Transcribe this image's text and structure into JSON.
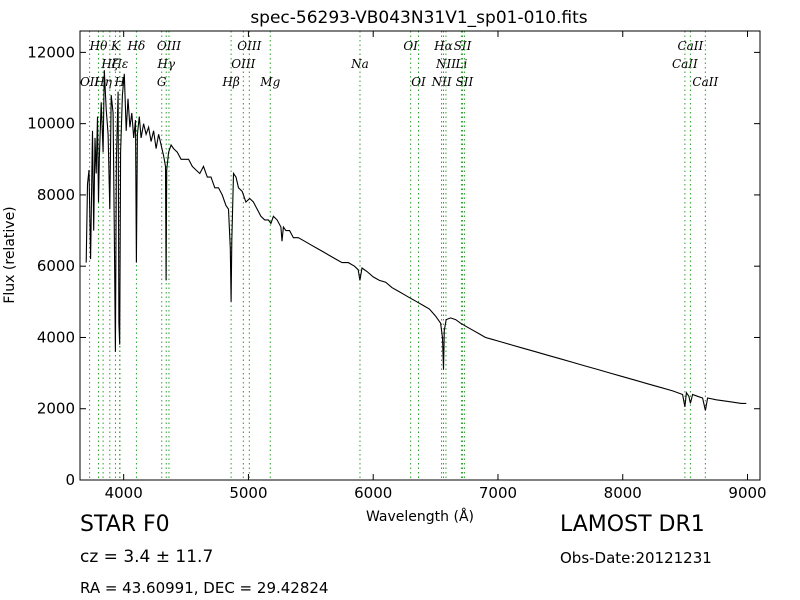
{
  "chart_data": {
    "type": "line",
    "title": "spec-56293-VB043N31V1_sp01-010.fits",
    "xlabel": "Wavelength (Å)",
    "ylabel": "Flux (relative)",
    "xlim": [
      3650,
      9100
    ],
    "ylim": [
      0,
      12600
    ],
    "xticks": [
      4000,
      5000,
      6000,
      7000,
      8000,
      9000
    ],
    "yticks": [
      0,
      2000,
      4000,
      6000,
      8000,
      10000,
      12000
    ],
    "grid": false,
    "line_color": "#000000",
    "marker_color": "#2ca02c",
    "series": [
      {
        "x": [
          3700,
          3710,
          3722,
          3735,
          3750,
          3760,
          3770,
          3780,
          3790,
          3798,
          3805,
          3820,
          3835,
          3845,
          3860,
          3875,
          3889,
          3900,
          3915,
          3925,
          3934,
          3942,
          3955,
          3962,
          3968,
          3975,
          3990,
          4005,
          4020,
          4035,
          4050,
          4065,
          4080,
          4095,
          4102,
          4110,
          4125,
          4140,
          4160,
          4180,
          4200,
          4220,
          4240,
          4260,
          4280,
          4300,
          4320,
          4335,
          4340,
          4345,
          4360,
          4380,
          4400,
          4430,
          4460,
          4490,
          4520,
          4550,
          4580,
          4610,
          4640,
          4670,
          4700,
          4730,
          4760,
          4790,
          4820,
          4840,
          4855,
          4861,
          4867,
          4880,
          4900,
          4920,
          4950,
          4980,
          5010,
          5040,
          5070,
          5100,
          5130,
          5160,
          5180,
          5200,
          5230,
          5260,
          5269,
          5280,
          5300,
          5330,
          5360,
          5400,
          5450,
          5500,
          5550,
          5600,
          5650,
          5700,
          5750,
          5800,
          5850,
          5880,
          5893,
          5910,
          5950,
          6000,
          6050,
          6100,
          6150,
          6200,
          6250,
          6300,
          6350,
          6400,
          6450,
          6500,
          6540,
          6555,
          6563,
          6570,
          6585,
          6620,
          6660,
          6700,
          6750,
          6800,
          6850,
          6900,
          6950,
          7000,
          7100,
          7200,
          7300,
          7400,
          7500,
          7600,
          7700,
          7800,
          7900,
          8000,
          8100,
          8200,
          8300,
          8400,
          8480,
          8498,
          8510,
          8530,
          8542,
          8560,
          8600,
          8640,
          8662,
          8680,
          8750,
          8850,
          8950,
          8990
        ],
        "y": [
          6100,
          8300,
          8700,
          6200,
          9800,
          7000,
          9600,
          8600,
          10200,
          7800,
          9000,
          10600,
          9200,
          11500,
          10400,
          9700,
          7600,
          10800,
          10300,
          7000,
          3600,
          9000,
          10900,
          4400,
          3800,
          9200,
          10800,
          11400,
          9800,
          10700,
          9900,
          10300,
          9600,
          10100,
          6100,
          9700,
          10200,
          9600,
          10000,
          9700,
          9900,
          9500,
          9800,
          9300,
          9700,
          9400,
          9100,
          8800,
          5600,
          8700,
          9200,
          9400,
          9300,
          9200,
          9000,
          9000,
          9000,
          8800,
          8700,
          8600,
          8800,
          8500,
          8500,
          8200,
          8200,
          8000,
          7700,
          7600,
          6500,
          5000,
          6700,
          8600,
          8500,
          8200,
          8100,
          7800,
          7900,
          7800,
          7600,
          7400,
          7300,
          7300,
          7200,
          7400,
          7300,
          7100,
          6700,
          7100,
          7000,
          7000,
          6800,
          6800,
          6700,
          6600,
          6500,
          6400,
          6300,
          6200,
          6100,
          6100,
          6000,
          5900,
          5600,
          5950,
          5850,
          5700,
          5600,
          5550,
          5400,
          5300,
          5200,
          5100,
          5000,
          4900,
          4800,
          4600,
          4400,
          4000,
          3100,
          4200,
          4500,
          4550,
          4500,
          4400,
          4300,
          4200,
          4100,
          4000,
          3950,
          3900,
          3800,
          3700,
          3600,
          3500,
          3400,
          3300,
          3200,
          3100,
          3000,
          2900,
          2800,
          2700,
          2600,
          2500,
          2400,
          2050,
          2450,
          2350,
          2150,
          2400,
          2350,
          2300,
          1950,
          2300,
          2250,
          2200,
          2150,
          2150
        ]
      }
    ],
    "lines": [
      {
        "name": "OII",
        "x": 3727,
        "row": 2
      },
      {
        "name": "Hθ",
        "x": 3798,
        "row": 0
      },
      {
        "name": "Hη",
        "x": 3835,
        "row": 2
      },
      {
        "name": "Hζ",
        "x": 3889,
        "row": 1
      },
      {
        "name": "Hε",
        "x": 3970,
        "row": 1
      },
      {
        "name": "K",
        "x": 3934,
        "row": 0
      },
      {
        "name": "H",
        "x": 3968,
        "row": 2
      },
      {
        "name": "Hδ",
        "x": 4102,
        "row": 0
      },
      {
        "name": "G",
        "x": 4305,
        "row": 2
      },
      {
        "name": "Hγ",
        "x": 4341,
        "row": 1
      },
      {
        "name": "OIII",
        "x": 4363,
        "row": 0
      },
      {
        "name": "Hβ",
        "x": 4861,
        "row": 2
      },
      {
        "name": "OIII",
        "x": 4959,
        "row": 1
      },
      {
        "name": "OIII",
        "x": 5007,
        "row": 0
      },
      {
        "name": "Mg",
        "x": 5175,
        "row": 2
      },
      {
        "name": "Na",
        "x": 5894,
        "row": 1
      },
      {
        "name": "OI",
        "x": 6300,
        "row": 0
      },
      {
        "name": "OI",
        "x": 6363,
        "row": 2
      },
      {
        "name": "NII",
        "x": 6548,
        "row": 2
      },
      {
        "name": "Hα",
        "x": 6563,
        "row": 0
      },
      {
        "name": "NII",
        "x": 6583,
        "row": 1
      },
      {
        "name": "Li",
        "x": 6707,
        "row": 1
      },
      {
        "name": "SII",
        "x": 6716,
        "row": 0
      },
      {
        "name": "SII",
        "x": 6731,
        "row": 2
      },
      {
        "name": "CaII",
        "x": 8498,
        "row": 1
      },
      {
        "name": "CaII",
        "x": 8542,
        "row": 0
      },
      {
        "name": "CaII",
        "x": 8662,
        "row": 2
      }
    ]
  },
  "info": {
    "class_label": "STAR   F0",
    "cz_text": "cz = 3.4 ± 11.7",
    "radec_text": "RA = 43.60991, DEC = 29.42824",
    "survey": "LAMOST DR1",
    "obs_date": "Obs-Date:20121231"
  }
}
